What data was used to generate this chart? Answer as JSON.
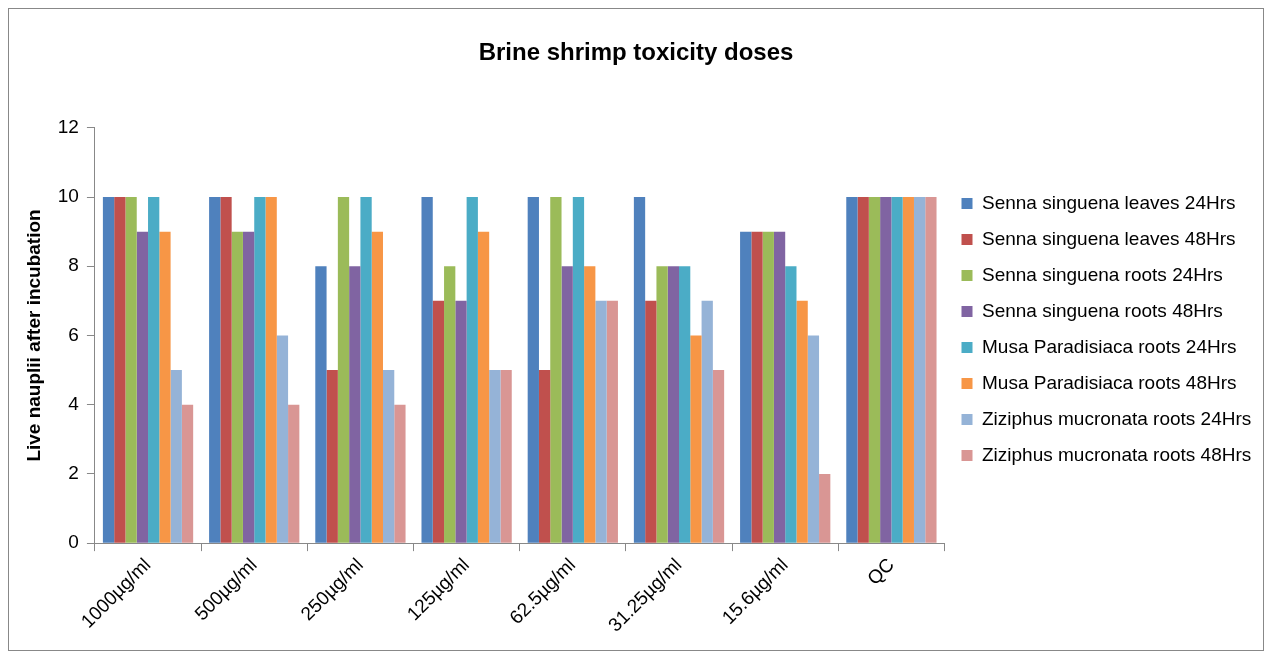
{
  "chart_data": {
    "type": "bar",
    "title": "Brine shrimp toxicity doses",
    "ylabel": "Live nauplii after incubation",
    "categories": [
      "1000µg/ml",
      "500µg/ml",
      "250µg/ml",
      "125µg/ml",
      "62.5µg/ml",
      "31.25µg/ml",
      "15.6µg/ml",
      "QC"
    ],
    "series": [
      {
        "name": "Senna singuena leaves 24Hrs",
        "color": "#4f81bd",
        "values": [
          10,
          10,
          8,
          10,
          10,
          10,
          9,
          10
        ]
      },
      {
        "name": "Senna singuena leaves 48Hrs",
        "color": "#c0504d",
        "values": [
          10,
          10,
          5,
          7,
          5,
          7,
          9,
          10
        ]
      },
      {
        "name": "Senna singuena roots 24Hrs",
        "color": "#9bbb59",
        "values": [
          10,
          9,
          10,
          8,
          10,
          8,
          9,
          10
        ]
      },
      {
        "name": "Senna singuena roots 48Hrs",
        "color": "#8064a2",
        "values": [
          9,
          9,
          8,
          7,
          8,
          8,
          9,
          10
        ]
      },
      {
        "name": "Musa Paradisiaca roots 24Hrs",
        "color": "#4bacc6",
        "values": [
          10,
          10,
          10,
          10,
          10,
          8,
          8,
          10
        ]
      },
      {
        "name": "Musa Paradisiaca roots 48Hrs",
        "color": "#f79646",
        "values": [
          9,
          10,
          9,
          9,
          8,
          6,
          7,
          10
        ]
      },
      {
        "name": "Ziziphus mucronata roots 24Hrs",
        "color": "#95b3d7",
        "values": [
          5,
          6,
          5,
          5,
          7,
          7,
          6,
          10
        ]
      },
      {
        "name": "Ziziphus mucronata roots 48Hrs",
        "color": "#d99694",
        "values": [
          4,
          4,
          4,
          5,
          7,
          5,
          2,
          10
        ]
      }
    ],
    "ylim": [
      0,
      12
    ],
    "yticks": [
      0,
      2,
      4,
      6,
      8,
      10,
      12
    ],
    "grid": false,
    "legend": "right"
  }
}
